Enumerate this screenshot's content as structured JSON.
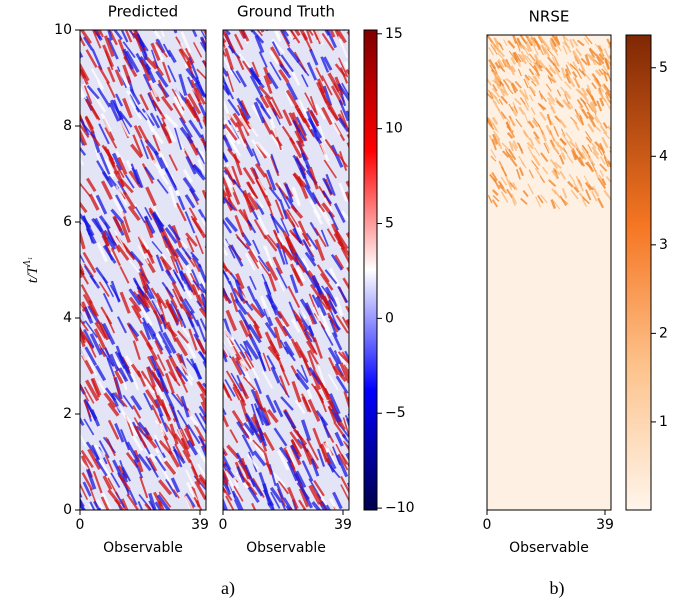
{
  "chart_data": [
    {
      "type": "heatmap",
      "title": "Predicted",
      "xlabel": "Observable",
      "ylabel": "t/T",
      "ylabel_sup": "Λ₁",
      "colormap": "seismic",
      "xlim": [
        0,
        39
      ],
      "xticks": [
        0,
        39
      ],
      "ylim": [
        0,
        10
      ],
      "yticks": [
        0,
        2,
        4,
        6,
        8,
        10
      ]
    },
    {
      "type": "heatmap",
      "title": "Ground Truth",
      "xlabel": "Observable",
      "colormap": "seismic",
      "xlim": [
        0,
        39
      ],
      "xticks": [
        0,
        39
      ],
      "ylim": [
        0,
        10
      ],
      "colorbar": {
        "lim": [
          -10.1,
          15.2
        ],
        "ticks": [
          {
            "value": -10,
            "label": "−10"
          },
          {
            "value": -5,
            "label": "−5"
          },
          0,
          5,
          10,
          15
        ]
      }
    },
    {
      "type": "heatmap",
      "title": "NRSE",
      "xlabel": "Observable",
      "colormap": "oranges",
      "xlim": [
        0,
        39
      ],
      "xticks": [
        0,
        39
      ],
      "ylim": [
        0,
        10
      ],
      "colorbar": {
        "lim": [
          0.005,
          5.37
        ],
        "ticks": [
          1,
          2,
          3,
          4,
          5
        ]
      }
    }
  ],
  "captions": [
    "a)",
    "b)"
  ]
}
